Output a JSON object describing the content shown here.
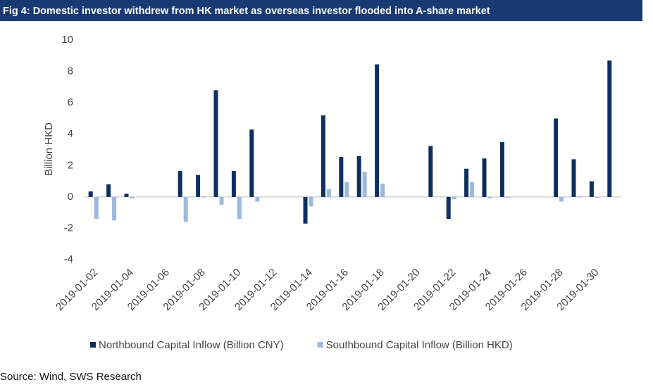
{
  "title": "Fig 4: Domestic investor withdrew from HK market as overseas investor flooded into A-share market",
  "source": "Source: Wind, SWS Research",
  "chart_data": {
    "type": "bar",
    "ylabel": "Billion HKD",
    "categories": [
      "2019-01-02",
      null,
      "2019-01-04",
      null,
      "2019-01-06",
      null,
      "2019-01-08",
      null,
      "2019-01-10",
      null,
      "2019-01-12",
      null,
      "2019-01-14",
      null,
      "2019-01-16",
      null,
      "2019-01-18",
      null,
      "2019-01-20",
      null,
      "2019-01-22",
      null,
      "2019-01-24",
      null,
      "2019-01-26",
      null,
      "2019-01-28",
      null,
      "2019-01-30",
      null
    ],
    "series": [
      {
        "name": "Northbound Capital Inflow (Billion CNY)",
        "color": "#0e2f5f",
        "values": [
          0.35,
          0.8,
          0.2,
          null,
          null,
          1.65,
          1.4,
          6.8,
          1.65,
          4.3,
          null,
          null,
          -1.7,
          5.2,
          2.55,
          2.6,
          8.45,
          null,
          null,
          3.25,
          -1.4,
          1.8,
          2.45,
          3.5,
          null,
          null,
          5.0,
          2.4,
          1.0,
          8.7
        ]
      },
      {
        "name": "Southbound Capital Inflow (Billion HKD)",
        "color": "#9db8dd",
        "values": [
          -1.4,
          -1.5,
          -0.1,
          null,
          null,
          -1.6,
          0.05,
          -0.5,
          -1.4,
          -0.3,
          null,
          null,
          -0.6,
          0.5,
          0.95,
          1.6,
          0.85,
          null,
          null,
          null,
          -0.15,
          0.95,
          -0.1,
          -0.05,
          null,
          null,
          -0.3,
          0.05,
          -0.05,
          null
        ]
      }
    ],
    "ylim": [
      -4,
      10
    ],
    "yticks": [
      -4,
      -2,
      0,
      2,
      4,
      6,
      8,
      10
    ],
    "grid": false
  }
}
